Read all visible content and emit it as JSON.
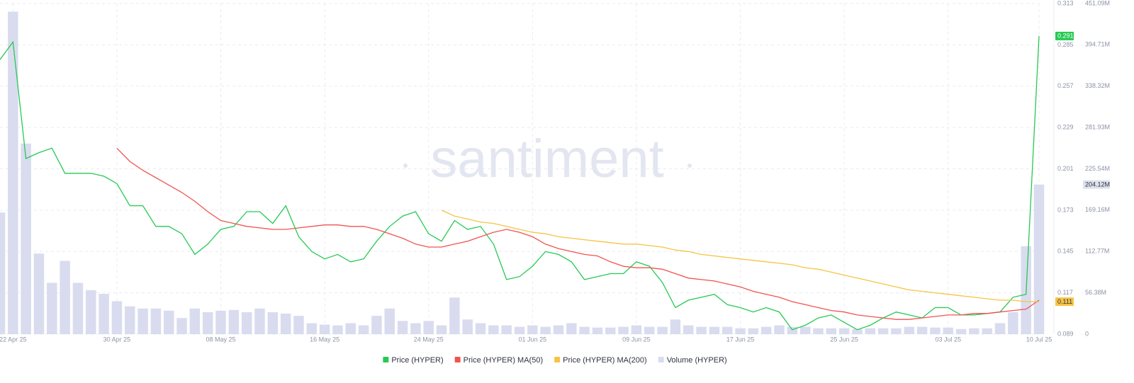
{
  "chart_data": {
    "type": "line",
    "watermark": "santiment",
    "grid": true,
    "x": [
      "2025-04-21",
      "2025-04-22",
      "2025-04-23",
      "2025-04-24",
      "2025-04-25",
      "2025-04-26",
      "2025-04-27",
      "2025-04-28",
      "2025-04-29",
      "2025-04-30",
      "2025-05-01",
      "2025-05-02",
      "2025-05-03",
      "2025-05-04",
      "2025-05-05",
      "2025-05-06",
      "2025-05-07",
      "2025-05-08",
      "2025-05-09",
      "2025-05-10",
      "2025-05-11",
      "2025-05-12",
      "2025-05-13",
      "2025-05-14",
      "2025-05-15",
      "2025-05-16",
      "2025-05-17",
      "2025-05-18",
      "2025-05-19",
      "2025-05-20",
      "2025-05-21",
      "2025-05-22",
      "2025-05-23",
      "2025-05-24",
      "2025-05-25",
      "2025-05-26",
      "2025-05-27",
      "2025-05-28",
      "2025-05-29",
      "2025-05-30",
      "2025-05-31",
      "2025-06-01",
      "2025-06-02",
      "2025-06-03",
      "2025-06-04",
      "2025-06-05",
      "2025-06-06",
      "2025-06-07",
      "2025-06-08",
      "2025-06-09",
      "2025-06-10",
      "2025-06-11",
      "2025-06-12",
      "2025-06-13",
      "2025-06-14",
      "2025-06-15",
      "2025-06-16",
      "2025-06-17",
      "2025-06-18",
      "2025-06-19",
      "2025-06-20",
      "2025-06-21",
      "2025-06-22",
      "2025-06-23",
      "2025-06-24",
      "2025-06-25",
      "2025-06-26",
      "2025-06-27",
      "2025-06-28",
      "2025-06-29",
      "2025-06-30",
      "2025-07-01",
      "2025-07-02",
      "2025-07-03",
      "2025-07-04",
      "2025-07-05",
      "2025-07-06",
      "2025-07-07",
      "2025-07-08",
      "2025-07-09",
      "2025-07-10"
    ],
    "xlim": [
      "2025-04-21",
      "2025-07-10"
    ],
    "xticks": [
      {
        "value": "2025-04-22",
        "label": "22 Apr 25"
      },
      {
        "value": "2025-04-30",
        "label": "30 Apr 25"
      },
      {
        "value": "2025-05-08",
        "label": "08 May 25"
      },
      {
        "value": "2025-05-16",
        "label": "16 May 25"
      },
      {
        "value": "2025-05-24",
        "label": "24 May 25"
      },
      {
        "value": "2025-06-01",
        "label": "01 Jun 25"
      },
      {
        "value": "2025-06-09",
        "label": "09 Jun 25"
      },
      {
        "value": "2025-06-17",
        "label": "17 Jun 25"
      },
      {
        "value": "2025-06-25",
        "label": "25 Jun 25"
      },
      {
        "value": "2025-07-03",
        "label": "03 Jul 25"
      },
      {
        "value": "2025-07-10",
        "label": "10 Jul 25"
      }
    ],
    "ylim": [
      0.089,
      0.313
    ],
    "yticks": [
      0.089,
      0.117,
      0.145,
      0.173,
      0.201,
      0.229,
      0.257,
      0.285,
      0.313
    ],
    "y2lim": [
      0,
      451090000
    ],
    "y2ticks": [
      0,
      {
        "value": 56380000,
        "label": "56.38M"
      },
      {
        "value": 112770000,
        "label": "112.77M"
      },
      {
        "value": 169160000,
        "label": "169.16M"
      },
      {
        "value": 225540000,
        "label": "225.54M"
      },
      {
        "value": 281930000,
        "label": "281.93M"
      },
      {
        "value": 338320000,
        "label": "338.32M"
      },
      {
        "value": 394710000,
        "label": "394.71M"
      },
      {
        "value": 451090000,
        "label": "451.09M"
      }
    ],
    "series": [
      {
        "name": "Price (HYPER)",
        "type": "line",
        "color": "#26c953",
        "values": [
          0.275,
          0.287,
          0.208,
          0.212,
          0.215,
          0.198,
          0.198,
          0.198,
          0.196,
          0.191,
          0.176,
          0.176,
          0.162,
          0.162,
          0.157,
          0.143,
          0.15,
          0.16,
          0.162,
          0.172,
          0.172,
          0.164,
          0.176,
          0.155,
          0.145,
          0.14,
          0.143,
          0.138,
          0.14,
          0.152,
          0.162,
          0.169,
          0.172,
          0.157,
          0.152,
          0.166,
          0.16,
          0.162,
          0.15,
          0.126,
          0.128,
          0.135,
          0.145,
          0.143,
          0.138,
          0.126,
          0.128,
          0.13,
          0.13,
          0.138,
          0.135,
          0.124,
          0.107,
          0.112,
          0.114,
          0.116,
          0.109,
          0.107,
          0.104,
          0.107,
          0.104,
          0.092,
          0.095,
          0.1,
          0.102,
          0.097,
          0.092,
          0.095,
          0.1,
          0.104,
          0.102,
          0.1,
          0.107,
          0.107,
          0.102,
          0.102,
          0.103,
          0.104,
          0.114,
          0.116,
          0.291
        ]
      },
      {
        "name": "Price (HYPER) MA(50)",
        "type": "line",
        "color": "#f05350",
        "values": [
          null,
          null,
          null,
          null,
          null,
          null,
          null,
          null,
          null,
          0.215,
          0.206,
          0.2,
          0.195,
          0.19,
          0.185,
          0.179,
          0.172,
          0.166,
          0.164,
          0.162,
          0.161,
          0.16,
          0.16,
          0.161,
          0.162,
          0.163,
          0.163,
          0.162,
          0.162,
          0.16,
          0.157,
          0.154,
          0.15,
          0.148,
          0.148,
          0.15,
          0.152,
          0.155,
          0.158,
          0.16,
          0.158,
          0.155,
          0.15,
          0.147,
          0.145,
          0.143,
          0.142,
          0.138,
          0.135,
          0.134,
          0.134,
          0.133,
          0.13,
          0.127,
          0.126,
          0.125,
          0.123,
          0.121,
          0.118,
          0.116,
          0.114,
          0.111,
          0.109,
          0.107,
          0.105,
          0.104,
          0.102,
          0.101,
          0.1,
          0.099,
          0.099,
          0.1,
          0.101,
          0.102,
          0.102,
          0.103,
          0.103,
          0.104,
          0.105,
          0.106,
          0.112
        ]
      },
      {
        "name": "Price (HYPER) MA(200)",
        "type": "line",
        "color": "#f6c343",
        "values": [
          null,
          null,
          null,
          null,
          null,
          null,
          null,
          null,
          null,
          null,
          null,
          null,
          null,
          null,
          null,
          null,
          null,
          null,
          null,
          null,
          null,
          null,
          null,
          null,
          null,
          null,
          null,
          null,
          null,
          null,
          null,
          null,
          null,
          null,
          0.173,
          0.169,
          0.167,
          0.165,
          0.164,
          0.162,
          0.16,
          0.158,
          0.157,
          0.155,
          0.154,
          0.153,
          0.152,
          0.151,
          0.15,
          0.15,
          0.149,
          0.148,
          0.146,
          0.145,
          0.143,
          0.142,
          0.141,
          0.14,
          0.139,
          0.138,
          0.137,
          0.136,
          0.134,
          0.133,
          0.131,
          0.129,
          0.127,
          0.125,
          0.123,
          0.121,
          0.119,
          0.118,
          0.117,
          0.116,
          0.115,
          0.114,
          0.113,
          0.112,
          0.112,
          0.111,
          0.111
        ]
      },
      {
        "name": "Volume (HYPER)",
        "type": "bar",
        "axis": "y2",
        "color": "#d9dcef",
        "values": [
          166000000,
          440000000,
          260000000,
          110000000,
          70000000,
          100000000,
          70000000,
          60000000,
          55000000,
          45000000,
          38000000,
          35000000,
          35000000,
          32000000,
          22000000,
          35000000,
          30000000,
          32000000,
          33000000,
          30000000,
          35000000,
          30000000,
          28000000,
          25000000,
          15000000,
          13000000,
          12000000,
          15000000,
          12000000,
          25000000,
          35000000,
          18000000,
          15000000,
          18000000,
          12000000,
          50000000,
          20000000,
          15000000,
          12000000,
          12000000,
          10000000,
          12000000,
          10000000,
          12000000,
          15000000,
          10000000,
          9000000,
          9000000,
          10000000,
          12000000,
          10000000,
          10000000,
          20000000,
          12000000,
          10000000,
          10000000,
          10000000,
          8000000,
          8000000,
          10000000,
          12000000,
          10000000,
          10000000,
          8000000,
          8000000,
          8000000,
          7000000,
          8000000,
          8000000,
          8000000,
          10000000,
          10000000,
          9000000,
          9000000,
          7000000,
          8000000,
          8000000,
          15000000,
          30000000,
          120000000,
          204120000
        ],
        "value_labels": [
          null,
          null,
          null,
          null,
          null,
          null,
          null,
          null,
          null,
          null,
          null,
          null,
          null,
          null,
          null,
          null,
          null,
          null,
          null,
          null,
          null,
          null,
          null,
          null,
          null,
          null,
          null,
          null,
          null,
          null,
          null,
          null,
          null,
          null,
          null,
          null,
          null,
          null,
          null,
          null,
          null,
          null,
          null,
          null,
          null,
          null,
          null,
          null,
          null,
          null,
          null,
          null,
          null,
          null,
          null,
          null,
          null,
          null,
          null,
          null,
          null,
          null,
          null,
          null,
          null,
          null,
          null,
          null,
          null,
          null,
          null,
          null,
          null,
          null,
          null,
          null,
          null,
          null,
          null,
          null,
          "204.12M"
        ]
      }
    ]
  }
}
